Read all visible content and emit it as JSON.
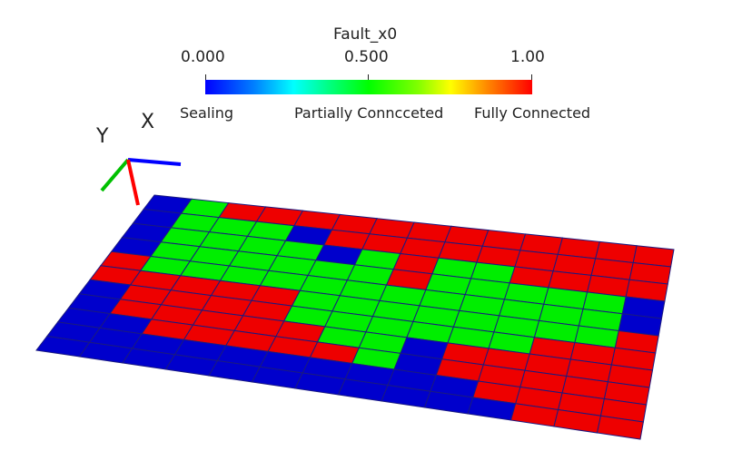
{
  "legend": {
    "title": "Fault_x0",
    "ticks": [
      "0.000",
      "0.500",
      "1.00"
    ],
    "categories": {
      "sealing": "Sealing",
      "partial": "Partially Conncceted",
      "full": "Fully Connected"
    },
    "range": [
      0,
      1
    ]
  },
  "axes_triad": {
    "x_label": "X",
    "y_label": "Y",
    "x_color": "#0000ff",
    "y_color": "#00c000",
    "z_color": "#ff0000"
  },
  "colors": {
    "sealing": "#0000cc",
    "partial": "#00ee00",
    "full": "#ee0000",
    "grid_line": "#1a1a80"
  },
  "mesh": {
    "rows": 11,
    "cols": 14,
    "value_map": {
      "B": 0.0,
      "G": 0.5,
      "R": 1.0
    },
    "cells": [
      "BGRRRRRRRRRRRR",
      "BGGGBRRRRRRRRR",
      "BGGGGBGRGGRRRR",
      "BGGGGGGRGGGGGB",
      "RGGGGGGGGGGGGB",
      "RRRRRGGGGGGGGR",
      "BRRRRGGGGGGRRR",
      "BRRRRRGGBRRRRR",
      "BBRRRRRGBRRRRR",
      "BBBBBBBBBBRRRR",
      "BBBBBBBBBBBRRR"
    ]
  }
}
